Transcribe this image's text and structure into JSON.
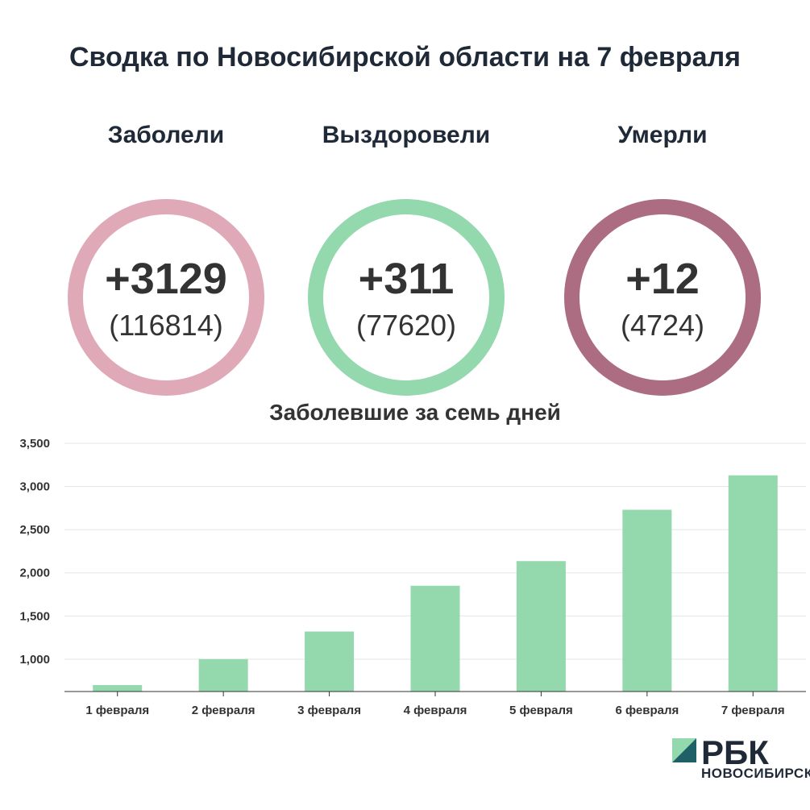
{
  "title": "Сводка по Новосибирской области на 7 февраля",
  "stats": [
    {
      "label": "Заболели",
      "delta": "+3129",
      "total": "(116814)",
      "color": "#dfa9b8"
    },
    {
      "label": "Выздоровели",
      "delta": "+311",
      "total": "(77620)",
      "color": "#94d8ad"
    },
    {
      "label": "Умерли",
      "delta": "+12",
      "total": "(4724)",
      "color": "#ac6c82"
    }
  ],
  "chart_data": {
    "type": "bar",
    "title": "Заболевшие за семь дней",
    "categories": [
      "1 февраля",
      "2 февраля",
      "3 февраля",
      "4 февраля",
      "5 февраля",
      "6 февраля",
      "7 февраля"
    ],
    "values": [
      700,
      1000,
      1320,
      1850,
      2135,
      2730,
      3129
    ],
    "ylim": [
      625,
      3500
    ],
    "yticks": [
      1000,
      1500,
      2000,
      2500,
      3000,
      3500
    ],
    "ytick_labels": [
      "1,000",
      "1,500",
      "2,000",
      "2,500",
      "3,000",
      "3,500"
    ],
    "grid": true,
    "bar_color": "#94d8ad"
  },
  "logo": {
    "brand": "РБК",
    "sub": "НОВОСИБИРСК",
    "color_light": "#94d8ad",
    "color_dark": "#1f5f66"
  }
}
